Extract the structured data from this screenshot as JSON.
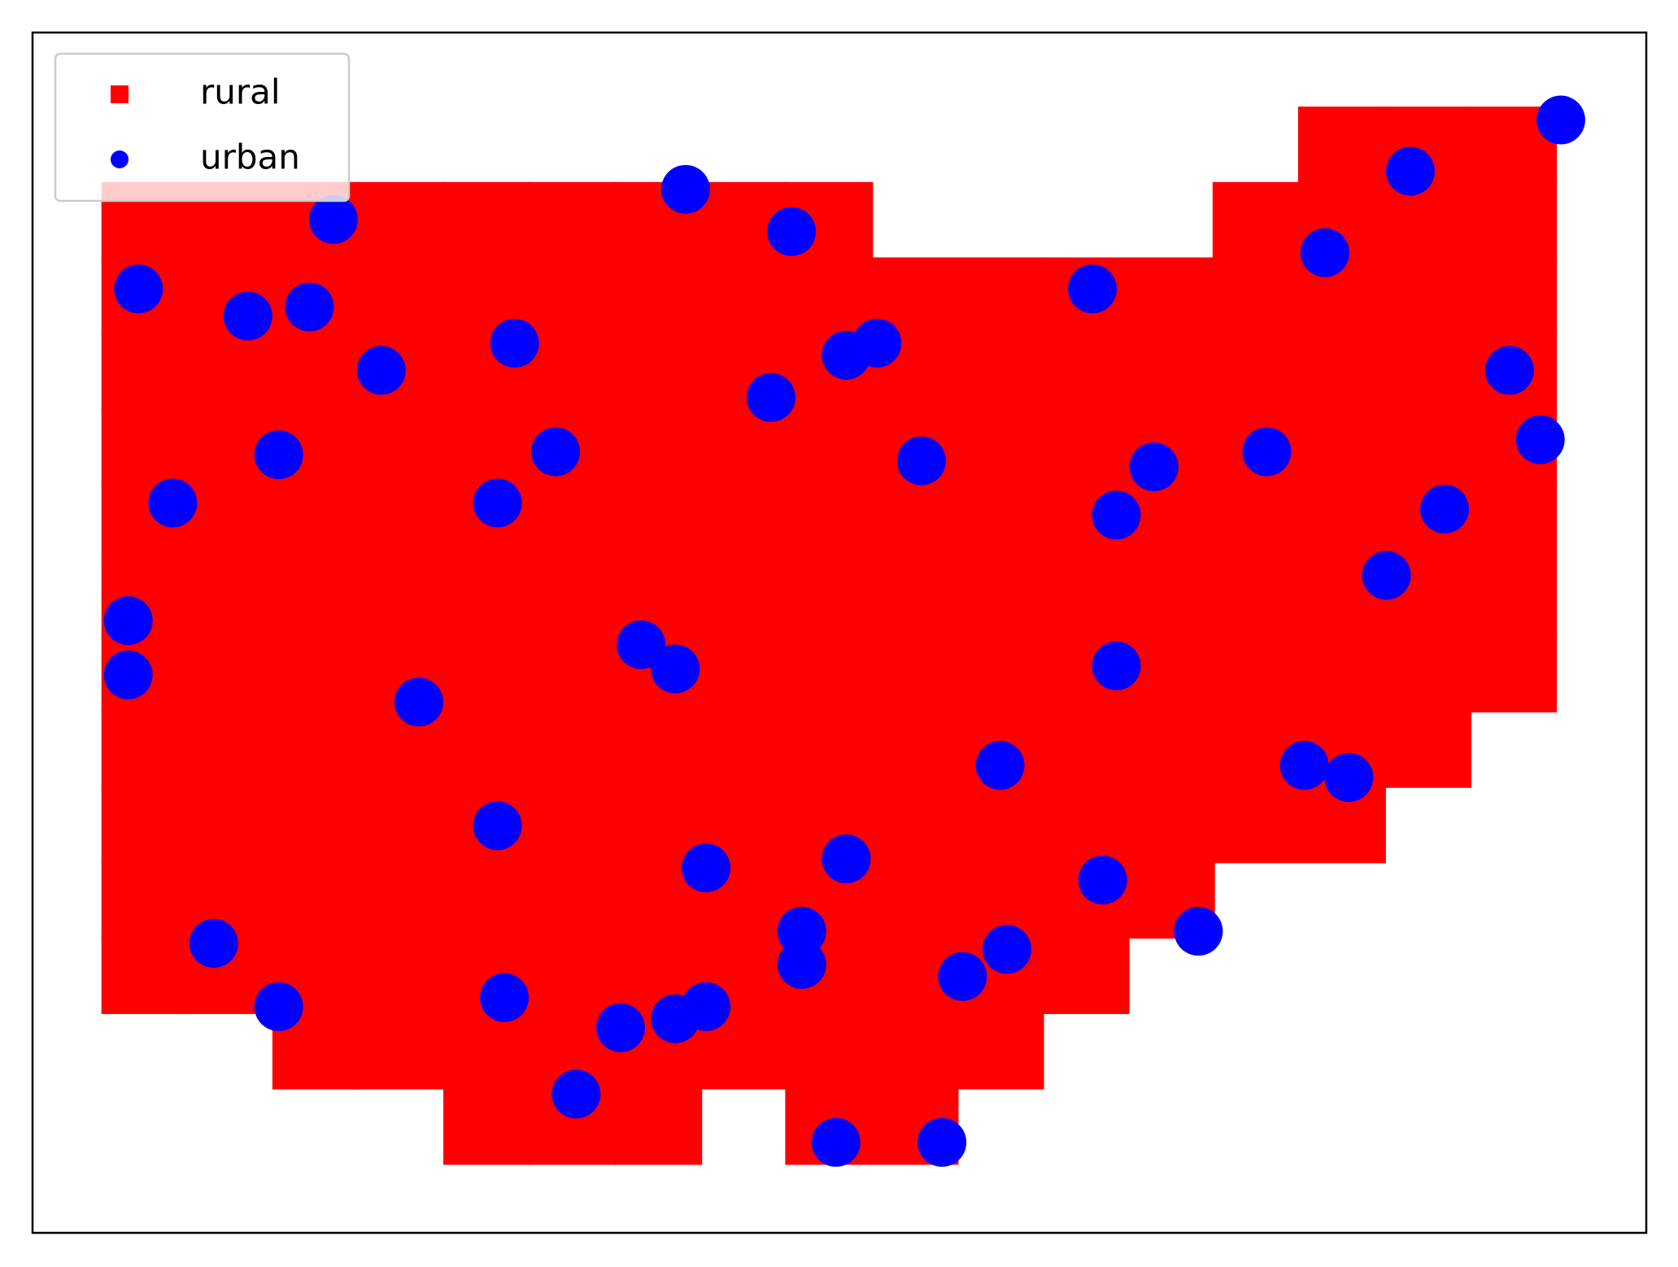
{
  "chart_data": {
    "type": "scatter",
    "xlim": [
      -85.03,
      -80.31
    ],
    "ylim": [
      38.22,
      42.2
    ],
    "legend": "upper left",
    "series": [
      {
        "name": "rural",
        "color": "#ff0000",
        "marker": "square",
        "x": [
          -81.2,
          -80.95,
          -80.7,
          -84.7,
          -84.45,
          -84.2,
          -83.95,
          -83.7,
          -83.45,
          -83.2,
          -82.95,
          -82.7,
          -81.45,
          -81.2,
          -80.95,
          -80.7,
          -84.7,
          -84.45,
          -84.2,
          -83.95,
          -83.7,
          -83.45,
          -83.2,
          -82.95,
          -82.7,
          -82.45,
          -82.2,
          -81.95,
          -81.7,
          -81.45,
          -81.2,
          -80.95,
          -80.7,
          -84.7,
          -84.45,
          -84.2,
          -83.95,
          -83.7,
          -83.45,
          -83.2,
          -82.95,
          -82.7,
          -82.45,
          -82.2,
          -81.95,
          -81.7,
          -81.45,
          -81.2,
          -80.95,
          -80.7,
          -84.7,
          -84.45,
          -84.2,
          -83.95,
          -83.7,
          -83.45,
          -83.2,
          -82.95,
          -82.7,
          -82.45,
          -82.2,
          -81.95,
          -81.7,
          -81.45,
          -81.2,
          -80.95,
          -80.7,
          -84.7,
          -84.45,
          -84.2,
          -83.95,
          -83.7,
          -83.45,
          -83.2,
          -82.95,
          -82.7,
          -82.45,
          -82.2,
          -81.95,
          -81.7,
          -81.45,
          -81.2,
          -80.95,
          -80.7,
          -84.7,
          -84.45,
          -84.2,
          -83.95,
          -83.7,
          -83.45,
          -83.2,
          -82.95,
          -82.7,
          -82.45,
          -82.2,
          -81.95,
          -81.7,
          -81.45,
          -81.2,
          -80.95,
          -80.7,
          -84.7,
          -84.45,
          -84.2,
          -83.95,
          -83.7,
          -83.45,
          -83.2,
          -82.95,
          -82.7,
          -82.45,
          -82.2,
          -81.95,
          -81.7,
          -81.45,
          -81.2,
          -80.95,
          -80.7,
          -84.7,
          -84.45,
          -84.2,
          -83.95,
          -83.7,
          -83.45,
          -83.2,
          -82.95,
          -82.7,
          -82.45,
          -82.2,
          -81.95,
          -81.7,
          -81.45,
          -81.2,
          -80.95,
          -84.7,
          -84.45,
          -84.2,
          -83.95,
          -83.7,
          -83.45,
          -83.2,
          -82.95,
          -82.7,
          -82.45,
          -82.2,
          -81.95,
          -81.7,
          -81.45,
          -81.2,
          -84.7,
          -84.45,
          -84.2,
          -83.95,
          -83.7,
          -83.45,
          -83.2,
          -82.95,
          -82.7,
          -82.45,
          -82.2,
          -81.95,
          -81.7,
          -84.7,
          -84.45,
          -84.2,
          -83.95,
          -83.7,
          -83.45,
          -83.2,
          -82.95,
          -82.7,
          -82.45,
          -82.2,
          -81.95,
          -84.2,
          -83.95,
          -83.7,
          -83.45,
          -83.2,
          -82.95,
          -82.7,
          -82.45,
          -82.2,
          -83.7,
          -83.45,
          -83.2,
          -82.7,
          -82.45
        ],
        "values": [
          41.825,
          41.825,
          41.825,
          41.575,
          41.575,
          41.575,
          41.575,
          41.575,
          41.575,
          41.575,
          41.575,
          41.575,
          41.575,
          41.575,
          41.575,
          41.575,
          41.325,
          41.325,
          41.325,
          41.325,
          41.325,
          41.325,
          41.325,
          41.325,
          41.325,
          41.325,
          41.325,
          41.325,
          41.325,
          41.325,
          41.325,
          41.325,
          41.325,
          41.075,
          41.075,
          41.075,
          41.075,
          41.075,
          41.075,
          41.075,
          41.075,
          41.075,
          41.075,
          41.075,
          41.075,
          41.075,
          41.075,
          41.075,
          41.075,
          41.075,
          40.825,
          40.825,
          40.825,
          40.825,
          40.825,
          40.825,
          40.825,
          40.825,
          40.825,
          40.825,
          40.825,
          40.825,
          40.825,
          40.825,
          40.825,
          40.825,
          40.825,
          40.575,
          40.575,
          40.575,
          40.575,
          40.575,
          40.575,
          40.575,
          40.575,
          40.575,
          40.575,
          40.575,
          40.575,
          40.575,
          40.575,
          40.575,
          40.575,
          40.575,
          40.325,
          40.325,
          40.325,
          40.325,
          40.325,
          40.325,
          40.325,
          40.325,
          40.325,
          40.325,
          40.325,
          40.325,
          40.325,
          40.325,
          40.325,
          40.325,
          40.325,
          40.075,
          40.075,
          40.075,
          40.075,
          40.075,
          40.075,
          40.075,
          40.075,
          40.075,
          40.075,
          40.075,
          40.075,
          40.075,
          40.075,
          40.075,
          40.075,
          40.075,
          39.825,
          39.825,
          39.825,
          39.825,
          39.825,
          39.825,
          39.825,
          39.825,
          39.825,
          39.825,
          39.825,
          39.825,
          39.825,
          39.825,
          39.825,
          39.825,
          39.575,
          39.575,
          39.575,
          39.575,
          39.575,
          39.575,
          39.575,
          39.575,
          39.575,
          39.575,
          39.575,
          39.575,
          39.575,
          39.575,
          39.575,
          39.325,
          39.325,
          39.325,
          39.325,
          39.325,
          39.325,
          39.325,
          39.325,
          39.325,
          39.325,
          39.325,
          39.325,
          39.325,
          39.075,
          39.075,
          39.075,
          39.075,
          39.075,
          39.075,
          39.075,
          39.075,
          39.075,
          39.075,
          39.075,
          39.075,
          38.825,
          38.825,
          38.825,
          38.825,
          38.825,
          38.825,
          38.825,
          38.825,
          38.825,
          38.575,
          38.575,
          38.575,
          38.575,
          38.575
        ]
      },
      {
        "name": "urban",
        "color": "#0000ff",
        "marker": "circle",
        "x": [
          -84.15,
          -84.4,
          -84.22,
          -83.62,
          -82.87,
          -82.65,
          -82.56,
          -83.67,
          -84.75,
          -84.75,
          -83.9,
          -83.25,
          -83.15,
          -83.67,
          -81.86,
          -81.42,
          -80.71,
          -80.62,
          -81.07,
          -81.31,
          -81.18,
          -82.2,
          -82.65,
          -82.78,
          -82.78,
          -82.18,
          -82.31,
          -83.65,
          -83.15,
          -83.31,
          -83.06,
          -82.68,
          -82.37,
          -82.81,
          -81.86,
          -80.56,
          -84.62,
          -84.72,
          -84.31,
          -81.9,
          -81.0,
          -81.25,
          -83.12,
          -81.62,
          -84.01,
          -83.5,
          -82.43,
          -81.75,
          -80.9,
          -81.93,
          -84.5,
          -84.31,
          -83.06,
          -83.44
        ],
        "values": [
          41.58,
          41.26,
          41.29,
          41.17,
          40.99,
          41.13,
          41.17,
          40.64,
          40.25,
          40.07,
          39.98,
          40.17,
          40.09,
          39.57,
          40.1,
          40.81,
          41.08,
          40.85,
          40.4,
          39.77,
          39.73,
          39.77,
          39.46,
          39.22,
          39.11,
          39.16,
          39.07,
          39.0,
          38.93,
          38.9,
          38.97,
          38.52,
          38.52,
          41.54,
          40.6,
          41.91,
          40.64,
          41.35,
          40.8,
          39.39,
          41.74,
          41.47,
          41.68,
          39.22,
          41.08,
          40.81,
          40.78,
          40.76,
          40.62,
          41.35,
          39.18,
          38.97,
          39.43,
          38.68
        ]
      }
    ]
  }
}
